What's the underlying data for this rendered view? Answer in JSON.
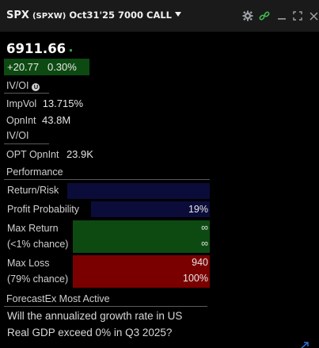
{
  "header": {
    "symbol": "SPX",
    "contract_detail": "(SPXW)",
    "contract": "Oct31'25 7000 CALL",
    "icons": [
      "gear-icon",
      "link-icon",
      "minimize-icon",
      "maximize-icon",
      "close-icon"
    ]
  },
  "quote": {
    "price": "6911.66",
    "change": "+20.77",
    "change_pct": "0.30%"
  },
  "ivoi_section": {
    "heading": "IV/OI",
    "badge": "U",
    "impvol_label": "ImpVol",
    "impvol_value": "13.715%",
    "opnint_label": "OpnInt",
    "opnint_value": "43.8M"
  },
  "ivoi_section2": {
    "heading": "IV/OI",
    "opt_opnint_label": "OPT OpnInt",
    "opt_opnint_value": "23.9K"
  },
  "performance": {
    "heading": "Performance",
    "return_risk_label": "Return/Risk",
    "profit_prob_label": "Profit Probability",
    "profit_prob_value": "19%",
    "max_return_label": "Max Return",
    "max_return_sub": "(<1% chance)",
    "max_return_value": "∞",
    "max_return_value2": "∞",
    "max_loss_label": "Max Loss",
    "max_loss_sub": "(79% chance)",
    "max_loss_value": "940",
    "max_loss_value2": "100%"
  },
  "forecastex": {
    "heading": "ForecastEx Most Active",
    "line1": "Will the annualized growth rate in US",
    "line2": "Real GDP exceed 0% in Q3 2025?"
  },
  "colors": {
    "positive_bg": "#0d4a12",
    "return_bg": "#0d4a12",
    "loss_bg": "#7a0000",
    "navy_bar": "#0c0c3a"
  }
}
